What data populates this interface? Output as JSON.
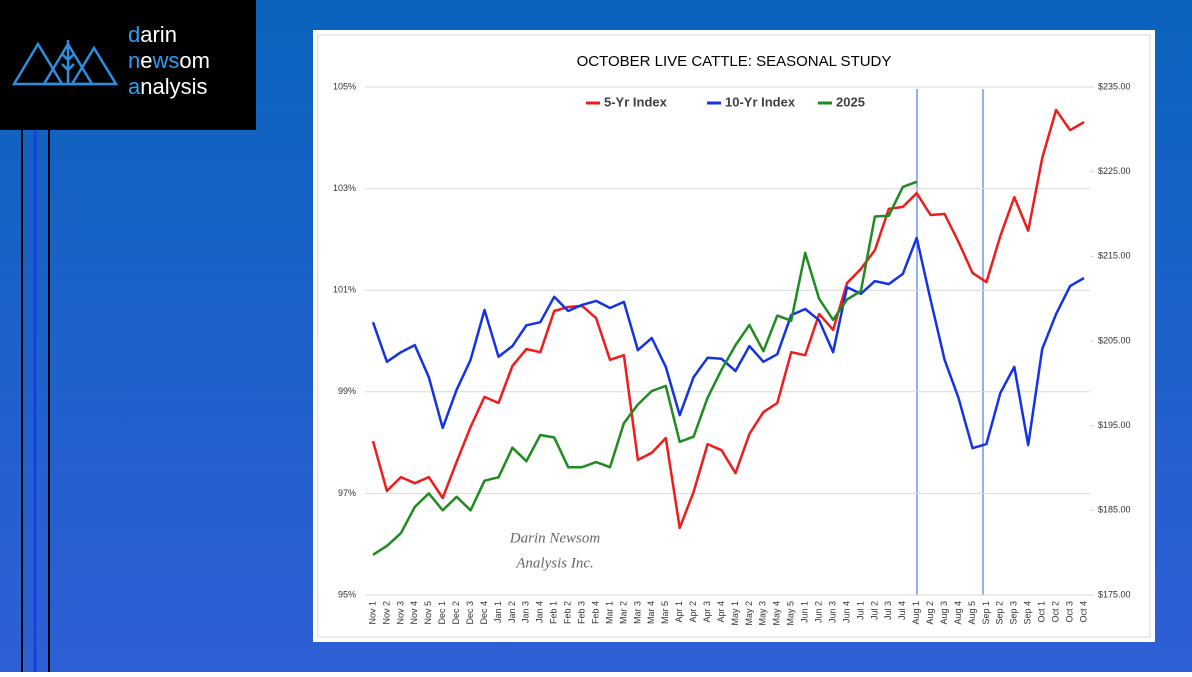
{
  "logo": {
    "lines": [
      [
        "d",
        "arin"
      ],
      [
        "n",
        "e",
        "ws",
        "om"
      ],
      [
        "a",
        "nalysis"
      ]
    ]
  },
  "chart_data": {
    "type": "line",
    "title": "OCTOBER LIVE CATTLE: SEASONAL STUDY",
    "annotations": [
      "Darin Newsom",
      "Analysis Inc."
    ],
    "categories": [
      "Nov 1",
      "Nov 2",
      "Nov 3",
      "Nov 4",
      "Nov 5",
      "Dec 1",
      "Dec 2",
      "Dec 3",
      "Dec 4",
      "Jan 1",
      "Jan 2",
      "Jan 3",
      "Jan 4",
      "Feb 1",
      "Feb 2",
      "Feb 3",
      "Feb 4",
      "Mar 1",
      "Mar 2",
      "Mar 3",
      "Mar 4",
      "Mar 5",
      "Apr 1",
      "Apr 2",
      "Apr 3",
      "Apr 4",
      "May 1",
      "May 2",
      "May 3",
      "May 4",
      "May 5",
      "Jun 1",
      "Jun 2",
      "Jun 3",
      "Jun 4",
      "Jul 1",
      "Jul 2",
      "Jul 3",
      "Jul 4",
      "Aug 1",
      "Aug 2",
      "Aug 3",
      "Aug 4",
      "Aug 5",
      "Sep 1",
      "Sep 2",
      "Sep 3",
      "Sep 4",
      "Oct 1",
      "Oct 2",
      "Oct 3",
      "Oct 4"
    ],
    "series": [
      {
        "name": "5-Yr Index",
        "color": "#ee1c1c",
        "values": [
          98.03,
          97.05,
          97.32,
          97.2,
          97.32,
          96.91,
          97.62,
          98.31,
          98.9,
          98.78,
          99.51,
          99.84,
          99.78,
          100.59,
          100.67,
          100.69,
          100.45,
          99.63,
          99.72,
          97.66,
          97.8,
          98.09,
          96.32,
          97.03,
          97.97,
          97.85,
          97.4,
          98.17,
          98.6,
          98.78,
          99.78,
          99.72,
          100.53,
          100.22,
          101.14,
          101.42,
          101.79,
          102.6,
          102.64,
          102.91,
          102.48,
          102.5,
          101.95,
          101.34,
          101.16,
          102.07,
          102.83,
          102.17,
          103.6,
          104.55,
          104.15,
          104.31
        ]
      },
      {
        "name": "10-Yr Index",
        "color": "#1432e6",
        "values": [
          100.37,
          99.59,
          99.78,
          99.92,
          99.29,
          98.29,
          99.04,
          99.63,
          100.61,
          99.69,
          99.9,
          100.31,
          100.37,
          100.87,
          100.59,
          100.71,
          100.79,
          100.65,
          100.77,
          99.82,
          100.06,
          99.49,
          98.54,
          99.29,
          99.67,
          99.65,
          99.41,
          99.9,
          99.59,
          99.74,
          100.51,
          100.63,
          100.41,
          99.78,
          101.06,
          100.93,
          101.18,
          101.12,
          101.32,
          102.03,
          100.81,
          99.63,
          98.88,
          97.89,
          97.97,
          98.98,
          99.49,
          97.95,
          99.84,
          100.53,
          101.08,
          101.24
        ]
      },
      {
        "name": "2025",
        "color": "#1e8c1e",
        "axis": "y2",
        "values": [
          179.75,
          180.8,
          182.3,
          185.4,
          187.0,
          185.0,
          186.6,
          185.0,
          188.5,
          188.9,
          192.4,
          190.8,
          193.9,
          193.6,
          190.1,
          190.1,
          190.7,
          190.1,
          195.3,
          197.5,
          199.1,
          199.7,
          193.1,
          193.7,
          198.3,
          201.6,
          204.5,
          206.9,
          203.8,
          208.0,
          207.4,
          215.4,
          210.0,
          207.5,
          209.9,
          210.9,
          219.7,
          219.8,
          223.2,
          223.8,
          null,
          null,
          null,
          null,
          null,
          null,
          null,
          null,
          null,
          null,
          null,
          null
        ]
      }
    ],
    "ylim": [
      95,
      105
    ],
    "yticks": [
      {
        "value": 95,
        "label": "95%"
      },
      {
        "value": 97,
        "label": "97%"
      },
      {
        "value": 99,
        "label": "99%"
      },
      {
        "value": 101,
        "label": "101%"
      },
      {
        "value": 103,
        "label": "103%"
      },
      {
        "value": 105,
        "label": "105%"
      }
    ],
    "y2lim": [
      175,
      235
    ],
    "y2ticks": [
      {
        "value": 175,
        "label": "$175.00"
      },
      {
        "value": 185,
        "label": "$185.00"
      },
      {
        "value": 195,
        "label": "$195.00"
      },
      {
        "value": 205,
        "label": "$205.00"
      },
      {
        "value": 215,
        "label": "$215.00"
      },
      {
        "value": 225,
        "label": "$225.00"
      },
      {
        "value": 235,
        "label": "$235.00"
      }
    ],
    "grid": true,
    "legend": "top"
  }
}
